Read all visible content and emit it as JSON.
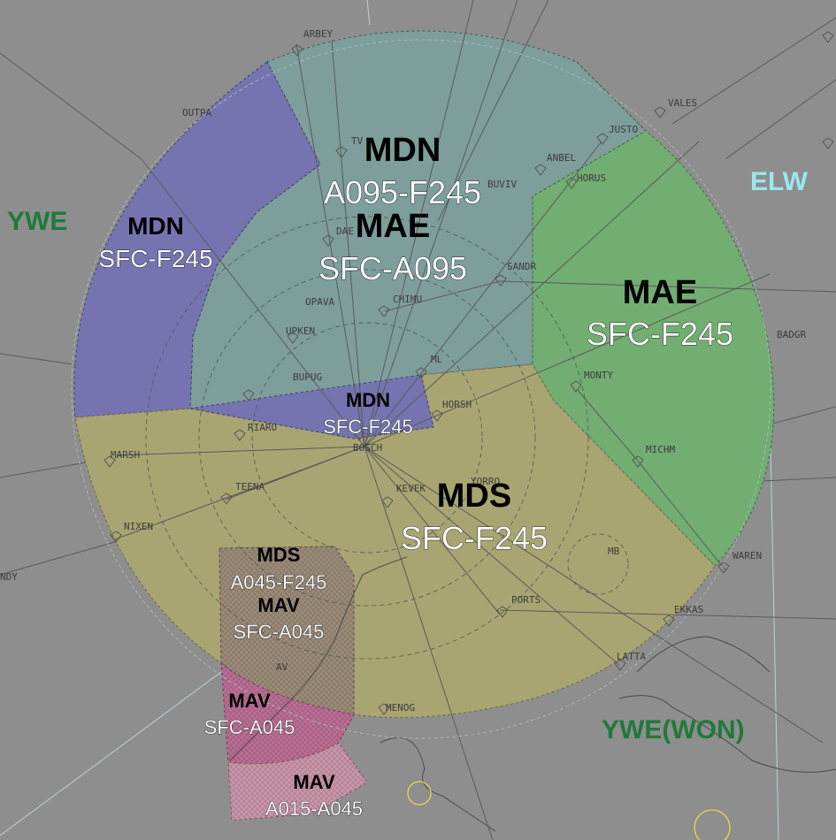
{
  "colors": {
    "background": "#8e8e8e",
    "mdn_sector": "#7574b0",
    "mae_mdn_sector": "#7d9e9b",
    "mae_sector": "#72ad72",
    "mds_sector": "#a9a572",
    "mds_mav_hatch": "#9a8a78",
    "mav_low": "#b86e93",
    "mav_hatch": "#c596a8",
    "adjacent_ywe": "#1e7a3a",
    "adjacent_elw": "#9ae7ee",
    "vor_ring": "#e6d94a"
  },
  "sectors": {
    "mdn_upper": {
      "name": "MDN",
      "limits": "A095-F245"
    },
    "mae_upper": {
      "name": "MAE",
      "limits": "SFC-A095"
    },
    "mdn_west": {
      "name": "MDN",
      "limits": "SFC-F245"
    },
    "mae_east": {
      "name": "MAE",
      "limits": "SFC-F245"
    },
    "mdn_center": {
      "name": "MDN",
      "limits": "SFC-F245"
    },
    "mds_main": {
      "name": "MDS",
      "limits": "SFC-F245"
    },
    "mds_sw": {
      "name": "MDS",
      "limits": "A045-F245"
    },
    "mav_sw": {
      "name": "MAV",
      "limits": "SFC-A045"
    },
    "mav_low": {
      "name": "MAV",
      "limits": "SFC-A045"
    },
    "mav_bottom": {
      "name": "MAV",
      "limits": "A015-A045"
    }
  },
  "adjacent": {
    "ywe": "YWE",
    "elw": "ELW",
    "ywe_won": "YWE(WON)"
  },
  "waypoints": {
    "arbey": "ARBEY",
    "outpa": "OUTPA",
    "vales": "VALES",
    "justo": "JUSTO",
    "anbel": "ANBEL",
    "horus": "HORUS",
    "buviv": "BUVIV",
    "dae": "DAE",
    "sandr": "SANDR",
    "opava": "OPAVA",
    "chimu": "CHIMU",
    "upken": "UPKEN",
    "ml": "ML",
    "bupug": "BUPUG",
    "horsh": "HORSH",
    "monty": "MONTY",
    "badgr": "BADGR",
    "riaro": "RIARO",
    "marsh": "MARSH",
    "teena": "TEENA",
    "kevek": "KEVEK",
    "yorro": "YORRO",
    "michm": "MICHM",
    "nixen": "NIXEN",
    "ndy": "NDY",
    "mb": "MB",
    "waren": "WAREN",
    "ports": "PORTS",
    "ekkas": "EKKAS",
    "latta": "LATTA",
    "av": "AV",
    "menog": "MENOG",
    "bosch": "BOSCH",
    "tv": "TV"
  }
}
